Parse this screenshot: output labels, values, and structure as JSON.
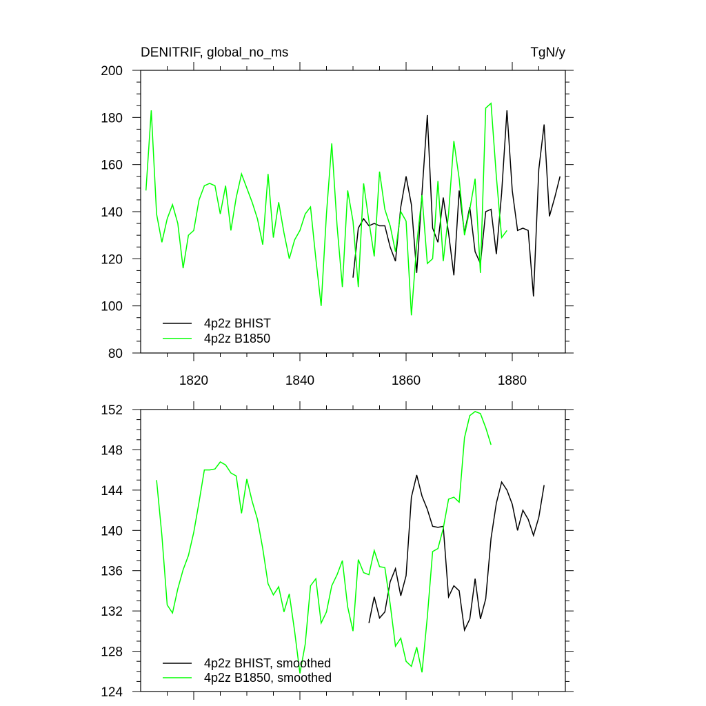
{
  "colors": {
    "bhist": "#000000",
    "b1850": "#00ff00",
    "axis": "#000000",
    "background": "#ffffff"
  },
  "chart_data": [
    {
      "type": "line",
      "title": "DENITRIF, global_no_ms",
      "units": "TgN/y",
      "xlim": [
        1810,
        1890
      ],
      "ylim": [
        80,
        200
      ],
      "x_ticks": [
        "1820",
        "1840",
        "1860",
        "1880"
      ],
      "y_ticks": [
        "80",
        "100",
        "120",
        "140",
        "160",
        "180",
        "200"
      ],
      "legend_position": "bottom-left",
      "grid": false,
      "series": [
        {
          "name": "4p2z BHIST",
          "color": "#000000",
          "x": [
            1850,
            1851,
            1852,
            1853,
            1854,
            1855,
            1856,
            1857,
            1858,
            1859,
            1860,
            1861,
            1862,
            1863,
            1864,
            1865,
            1866,
            1867,
            1868,
            1869,
            1870,
            1871,
            1872,
            1873,
            1874,
            1875,
            1876,
            1877,
            1878,
            1879,
            1880,
            1881,
            1882,
            1883,
            1884,
            1885,
            1886,
            1887,
            1888,
            1889
          ],
          "values": [
            112,
            133,
            137,
            134,
            135,
            134,
            134,
            125,
            119,
            142,
            155,
            143,
            114,
            148,
            181,
            133,
            127,
            146,
            131,
            113,
            149,
            131,
            142,
            123,
            118,
            140,
            141,
            122,
            148,
            183,
            149,
            132,
            133,
            132,
            104,
            158,
            177,
            138,
            146,
            155
          ]
        },
        {
          "name": "4p2z B1850",
          "color": "#00ff00",
          "x": [
            1811,
            1812,
            1813,
            1814,
            1815,
            1816,
            1817,
            1818,
            1819,
            1820,
            1821,
            1822,
            1823,
            1824,
            1825,
            1826,
            1827,
            1828,
            1829,
            1830,
            1831,
            1832,
            1833,
            1834,
            1835,
            1836,
            1837,
            1838,
            1839,
            1840,
            1841,
            1842,
            1843,
            1844,
            1845,
            1846,
            1847,
            1848,
            1849,
            1850,
            1851,
            1852,
            1853,
            1854,
            1855,
            1856,
            1857,
            1858,
            1859,
            1860,
            1861,
            1862,
            1863,
            1864,
            1865,
            1866,
            1867,
            1868,
            1869,
            1870,
            1871,
            1872,
            1873,
            1874,
            1875,
            1876,
            1877,
            1878,
            1879
          ],
          "values": [
            149,
            183,
            139,
            127,
            137,
            143,
            135,
            116,
            130,
            132,
            145,
            151,
            152,
            151,
            139,
            151,
            132,
            146,
            156,
            150,
            144,
            137,
            126,
            156,
            129,
            144,
            131,
            120,
            128,
            132,
            139,
            142,
            120,
            100,
            139,
            169,
            134,
            108,
            149,
            136,
            108,
            152,
            136,
            121,
            157,
            141,
            134,
            123,
            140,
            136,
            96,
            126,
            147,
            118,
            120,
            153,
            119,
            139,
            170,
            154,
            130,
            141,
            154,
            114,
            184,
            186,
            155,
            129,
            132
          ]
        }
      ]
    },
    {
      "type": "line",
      "title": "",
      "xlim": [
        1810,
        1890
      ],
      "ylim": [
        124,
        152
      ],
      "y_ticks": [
        "124",
        "128",
        "132",
        "136",
        "140",
        "144",
        "148",
        "152"
      ],
      "legend_position": "bottom-left",
      "grid": false,
      "series": [
        {
          "name": "4p2z BHIST, smoothed",
          "color": "#000000",
          "x": [
            1853,
            1854,
            1855,
            1856,
            1857,
            1858,
            1859,
            1860,
            1861,
            1862,
            1863,
            1864,
            1865,
            1866,
            1867,
            1868,
            1869,
            1870,
            1871,
            1872,
            1873,
            1874,
            1875,
            1876,
            1877,
            1878,
            1879,
            1880,
            1881,
            1882,
            1883,
            1884,
            1885,
            1886
          ],
          "values": [
            130.8,
            133.4,
            131.3,
            131.9,
            134.9,
            136.2,
            133.5,
            135.5,
            143.3,
            145.5,
            143.4,
            142.1,
            140.4,
            140.3,
            140.4,
            133.4,
            134.5,
            134.0,
            130.1,
            131.2,
            135.2,
            131.2,
            133.2,
            139.2,
            142.7,
            144.8,
            144.0,
            142.6,
            140.0,
            142.0,
            141.1,
            139.5,
            141.3,
            144.5
          ]
        },
        {
          "name": "4p2z B1850, smoothed",
          "color": "#00ff00",
          "x": [
            1813,
            1814,
            1815,
            1816,
            1817,
            1818,
            1819,
            1820,
            1821,
            1822,
            1823,
            1824,
            1825,
            1826,
            1827,
            1828,
            1829,
            1830,
            1831,
            1832,
            1833,
            1834,
            1835,
            1836,
            1837,
            1838,
            1839,
            1840,
            1841,
            1842,
            1843,
            1844,
            1845,
            1846,
            1847,
            1848,
            1849,
            1850,
            1851,
            1852,
            1853,
            1854,
            1855,
            1856,
            1857,
            1858,
            1859,
            1860,
            1861,
            1862,
            1863,
            1864,
            1865,
            1866,
            1867,
            1868,
            1869,
            1870,
            1871,
            1872,
            1873,
            1874,
            1875,
            1876
          ],
          "values": [
            145.0,
            139.5,
            132.6,
            131.8,
            134.2,
            136.1,
            137.5,
            139.8,
            142.8,
            146.0,
            146.0,
            146.1,
            146.8,
            146.5,
            145.7,
            145.4,
            141.7,
            145.1,
            142.9,
            141.1,
            138.2,
            134.7,
            133.6,
            134.4,
            131.9,
            133.7,
            130.0,
            125.8,
            128.7,
            134.5,
            135.2,
            130.8,
            131.9,
            134.5,
            135.6,
            137.0,
            132.4,
            130.0,
            137.1,
            135.8,
            135.6,
            138.0,
            136.4,
            136.3,
            132.7,
            128.5,
            129.3,
            127.0,
            126.5,
            128.4,
            125.9,
            131.4,
            137.9,
            138.2,
            140.2,
            143.1,
            143.3,
            142.8,
            149.2,
            151.4,
            151.8,
            151.6,
            150.2,
            148.5
          ]
        }
      ]
    }
  ]
}
